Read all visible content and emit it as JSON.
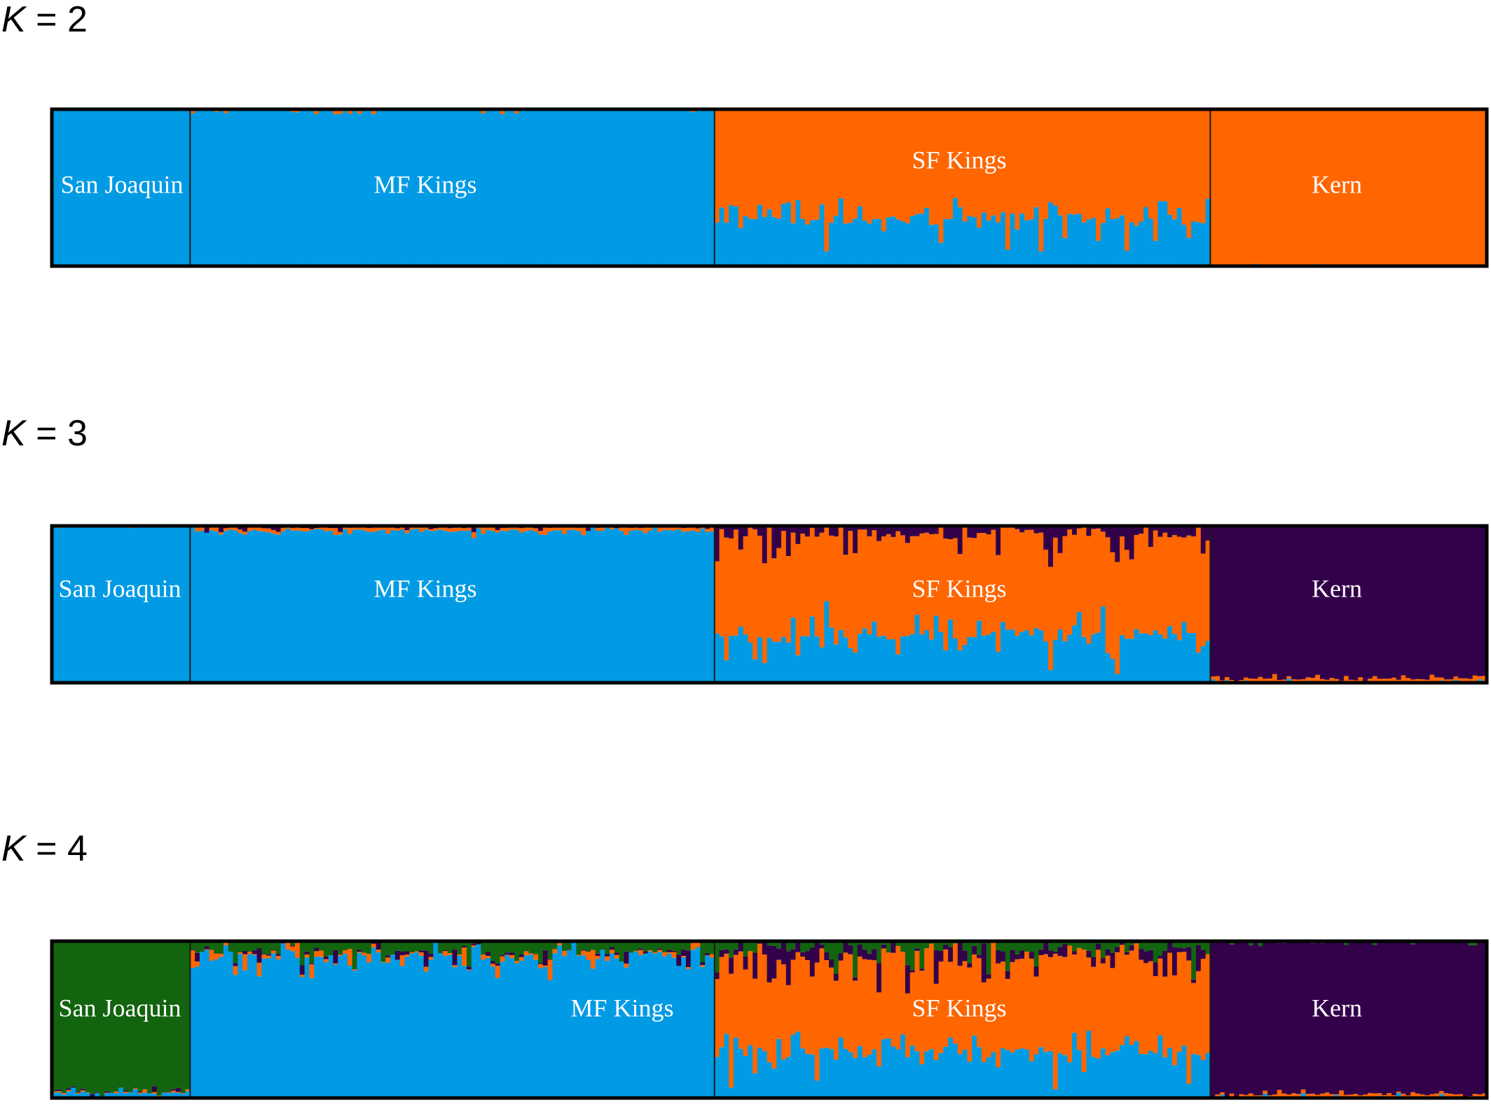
{
  "chart_data": [
    {
      "type": "bar",
      "k_prefix": "K",
      "k_suffix": " = 2",
      "series": [
        {
          "color": "#009be4"
        },
        {
          "color": "#ff6600"
        }
      ],
      "populations": [
        {
          "name": "San Joaquin",
          "n": 29,
          "base": [
            1,
            0
          ],
          "noise": 0.004
        },
        {
          "name": "MF Kings",
          "n": 110,
          "base": [
            1,
            0
          ],
          "noise": 0.035
        },
        {
          "name": "SF Kings",
          "n": 104,
          "base": [
            0.3,
            0.7
          ],
          "noise": 0.25
        },
        {
          "name": "Kern",
          "n": 58,
          "base": [
            0.005,
            0.995
          ],
          "noise": 0.01
        }
      ],
      "ylim": [
        0,
        1
      ]
    },
    {
      "type": "bar",
      "k_prefix": "K",
      "k_suffix": " = 3",
      "series": [
        {
          "color": "#009be4"
        },
        {
          "color": "#ff6600"
        },
        {
          "color": "#33004a"
        }
      ],
      "populations": [
        {
          "name": "San Joaquin",
          "n": 29,
          "base": [
            0.99,
            0.005,
            0.005
          ],
          "noise": 0.004
        },
        {
          "name": "MF Kings",
          "n": 110,
          "base": [
            0.97,
            0.02,
            0.01
          ],
          "noise": 0.035
        },
        {
          "name": "SF Kings",
          "n": 104,
          "base": [
            0.3,
            0.65,
            0.05
          ],
          "noise": 0.25
        },
        {
          "name": "Kern",
          "n": 58,
          "base": [
            0.005,
            0.02,
            0.975
          ],
          "noise": 0.03
        }
      ],
      "ylim": [
        0,
        1
      ]
    },
    {
      "type": "bar",
      "k_prefix": "K",
      "k_suffix": " = 4",
      "series": [
        {
          "color": "#009be4"
        },
        {
          "color": "#ff6600"
        },
        {
          "color": "#33004a"
        },
        {
          "color": "#12640f"
        }
      ],
      "populations": [
        {
          "name": "San Joaquin",
          "n": 29,
          "base": [
            0.03,
            0.005,
            0.005,
            0.96
          ],
          "noise": 0.04
        },
        {
          "name": "MF Kings",
          "n": 110,
          "base": [
            0.9,
            0.02,
            0.01,
            0.07
          ],
          "noise": 0.12
        },
        {
          "name": "SF Kings",
          "n": 104,
          "base": [
            0.3,
            0.6,
            0.05,
            0.05
          ],
          "noise": 0.25
        },
        {
          "name": "Kern",
          "n": 58,
          "base": [
            0.005,
            0.02,
            0.97,
            0.005
          ],
          "noise": 0.03
        }
      ],
      "ylim": [
        0,
        1
      ]
    }
  ]
}
